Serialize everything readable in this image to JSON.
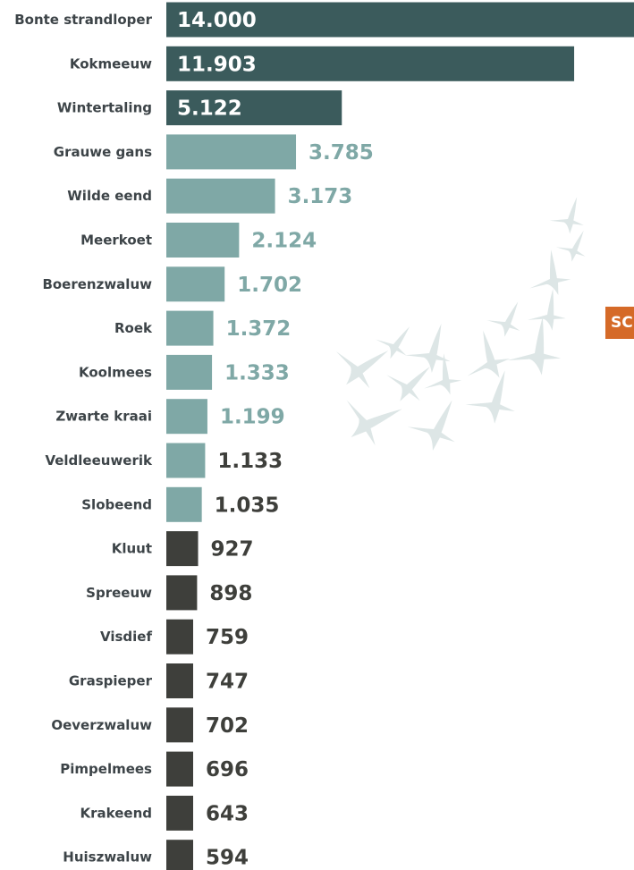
{
  "chart_data": {
    "type": "bar",
    "orientation": "horizontal",
    "categories": [
      "Bonte strandloper",
      "Kokmeeuw",
      "Wintertaling",
      "Grauwe gans",
      "Wilde eend",
      "Meerkoet",
      "Boerenzwaluw",
      "Roek",
      "Koolmees",
      "Zwarte kraai",
      "Veldleeuwerik",
      "Slobeend",
      "Kluut",
      "Spreeuw",
      "Visdief",
      "Graspieper",
      "Oeverzwaluw",
      "Pimpelmees",
      "Krakeend",
      "Huiszwaluw"
    ],
    "values": [
      14000,
      11903,
      5122,
      3785,
      3173,
      2124,
      1702,
      1372,
      1333,
      1199,
      1133,
      1035,
      927,
      898,
      759,
      747,
      702,
      696,
      643,
      594
    ],
    "value_labels": [
      "14.000",
      "11.903",
      "5.122",
      "3.785",
      "3.173",
      "2.124",
      "1.702",
      "1.372",
      "1.333",
      "1.199",
      "1.133",
      "1.035",
      "927",
      "898",
      "759",
      "747",
      "702",
      "696",
      "643",
      "594"
    ],
    "title": "",
    "xlabel": "",
    "ylabel": "",
    "grid": false,
    "legend": "none",
    "colors": {
      "dark_teal": "#3b5b5c",
      "light_teal": "#7fa8a6",
      "dark_gray": "#3e3f3b",
      "label_dark": "#3d4448",
      "decor_swallow": "#dde6e6"
    }
  },
  "side_badge": "SC"
}
